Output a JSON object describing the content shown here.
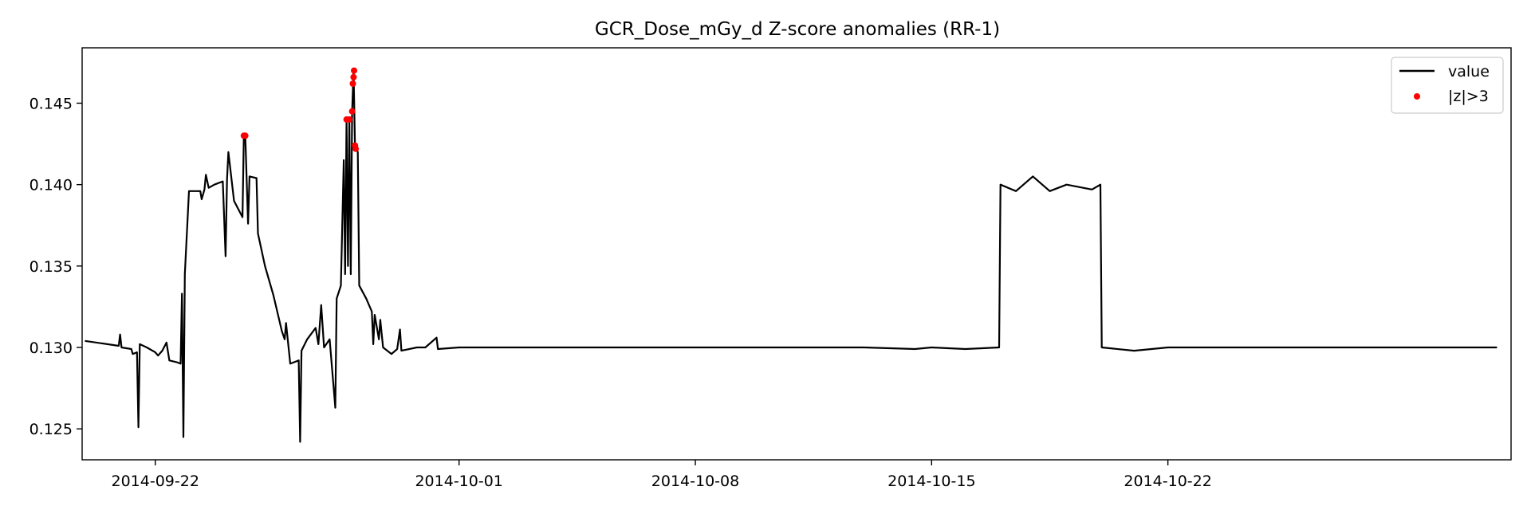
{
  "chart_data": {
    "type": "line",
    "title": "GCR_Dose_mGy_d Z-score anomalies (RR-1)",
    "xlabel": "",
    "ylabel": "",
    "x_axis": {
      "type": "date",
      "range": [
        "2014-09-19T20:00",
        "2014-11-01T04:00"
      ],
      "ticks": [
        "2014-09-22",
        "2014-10-01",
        "2014-10-08",
        "2014-10-15",
        "2014-10-22"
      ]
    },
    "y_axis": {
      "range": [
        0.1231,
        0.1484
      ],
      "ticks": [
        "0.125",
        "0.130",
        "0.135",
        "0.140",
        "0.145"
      ],
      "tick_values": [
        0.125,
        0.13,
        0.135,
        0.14,
        0.145
      ]
    },
    "grid": false,
    "legend": {
      "position": "top-right",
      "entries": [
        {
          "label": "value",
          "marker": "line",
          "color": "#000000"
        },
        {
          "label": "|z|>3",
          "marker": "dot",
          "color": "#ff0000"
        }
      ]
    },
    "series": [
      {
        "name": "value",
        "color": "#000000",
        "points": [
          [
            "2014-09-19T22:00",
            0.1304
          ],
          [
            "2014-09-20T22:00",
            0.1301
          ],
          [
            "2014-09-20T23:00",
            0.1308
          ],
          [
            "2014-09-21T00:00",
            0.13
          ],
          [
            "2014-09-21T07:00",
            0.1299
          ],
          [
            "2014-09-21T08:00",
            0.1296
          ],
          [
            "2014-09-21T11:00",
            0.1297
          ],
          [
            "2014-09-21T12:00",
            0.1251
          ],
          [
            "2014-09-21T13:00",
            0.1302
          ],
          [
            "2014-09-21T18:00",
            0.13
          ],
          [
            "2014-09-22T00:00",
            0.1297
          ],
          [
            "2014-09-22T02:00",
            0.1295
          ],
          [
            "2014-09-22T05:00",
            0.1298
          ],
          [
            "2014-09-22T08:00",
            0.1303
          ],
          [
            "2014-09-22T10:00",
            0.1292
          ],
          [
            "2014-09-22T15:00",
            0.1291
          ],
          [
            "2014-09-22T18:00",
            0.129
          ],
          [
            "2014-09-22T19:00",
            0.1333
          ],
          [
            "2014-09-22T20:00",
            0.1245
          ],
          [
            "2014-09-22T21:00",
            0.1345
          ],
          [
            "2014-09-23T00:00",
            0.1396
          ],
          [
            "2014-09-23T08:00",
            0.1396
          ],
          [
            "2014-09-23T09:00",
            0.1391
          ],
          [
            "2014-09-23T11:00",
            0.1397
          ],
          [
            "2014-09-23T12:00",
            0.1406
          ],
          [
            "2014-09-23T14:00",
            0.1398
          ],
          [
            "2014-09-23T18:00",
            0.14
          ],
          [
            "2014-09-24T00:00",
            0.1402
          ],
          [
            "2014-09-24T02:00",
            0.1356
          ],
          [
            "2014-09-24T03:00",
            0.1403
          ],
          [
            "2014-09-24T04:00",
            0.142
          ],
          [
            "2014-09-24T08:00",
            0.139
          ],
          [
            "2014-09-24T14:00",
            0.138
          ],
          [
            "2014-09-24T15:00",
            0.143
          ],
          [
            "2014-09-24T16:00",
            0.143
          ],
          [
            "2014-09-24T18:00",
            0.1376
          ],
          [
            "2014-09-24T19:00",
            0.1405
          ],
          [
            "2014-09-25T00:00",
            0.1404
          ],
          [
            "2014-09-25T01:00",
            0.137
          ],
          [
            "2014-09-25T06:00",
            0.135
          ],
          [
            "2014-09-25T12:00",
            0.1332
          ],
          [
            "2014-09-25T18:00",
            0.131
          ],
          [
            "2014-09-25T20:00",
            0.1305
          ],
          [
            "2014-09-25T21:00",
            0.1315
          ],
          [
            "2014-09-26T00:00",
            0.129
          ],
          [
            "2014-09-26T06:00",
            0.1292
          ],
          [
            "2014-09-26T07:00",
            0.1242
          ],
          [
            "2014-09-26T08:00",
            0.1298
          ],
          [
            "2014-09-26T12:00",
            0.1305
          ],
          [
            "2014-09-26T18:00",
            0.1312
          ],
          [
            "2014-09-26T20:00",
            0.1302
          ],
          [
            "2014-09-26T22:00",
            0.1326
          ],
          [
            "2014-09-27T00:00",
            0.13
          ],
          [
            "2014-09-27T04:00",
            0.1305
          ],
          [
            "2014-09-27T08:00",
            0.1263
          ],
          [
            "2014-09-27T09:00",
            0.133
          ],
          [
            "2014-09-27T12:00",
            0.1338
          ],
          [
            "2014-09-27T14:00",
            0.1415
          ],
          [
            "2014-09-27T15:00",
            0.1345
          ],
          [
            "2014-09-27T16:00",
            0.144
          ],
          [
            "2014-09-27T17:00",
            0.135
          ],
          [
            "2014-09-27T18:00",
            0.144
          ],
          [
            "2014-09-27T19:00",
            0.1345
          ],
          [
            "2014-09-27T20:00",
            0.1445
          ],
          [
            "2014-09-27T21:00",
            0.147
          ],
          [
            "2014-09-27T22:00",
            0.1423
          ],
          [
            "2014-09-28T00:00",
            0.142
          ],
          [
            "2014-09-28T01:00",
            0.1338
          ],
          [
            "2014-09-28T06:00",
            0.133
          ],
          [
            "2014-09-28T10:00",
            0.1322
          ],
          [
            "2014-09-28T11:00",
            0.1302
          ],
          [
            "2014-09-28T12:00",
            0.132
          ],
          [
            "2014-09-28T15:00",
            0.1305
          ],
          [
            "2014-09-28T16:00",
            0.1317
          ],
          [
            "2014-09-28T18:00",
            0.13
          ],
          [
            "2014-09-29T00:00",
            0.1296
          ],
          [
            "2014-09-29T04:00",
            0.1299
          ],
          [
            "2014-09-29T06:00",
            0.1311
          ],
          [
            "2014-09-29T07:00",
            0.1298
          ],
          [
            "2014-09-29T18:00",
            0.13
          ],
          [
            "2014-09-30T00:00",
            0.13
          ],
          [
            "2014-09-30T08:00",
            0.1306
          ],
          [
            "2014-09-30T09:00",
            0.1299
          ],
          [
            "2014-10-01T00:00",
            0.13
          ],
          [
            "2014-10-13T00:00",
            0.13
          ],
          [
            "2014-10-14T12:00",
            0.1299
          ],
          [
            "2014-10-15T00:00",
            0.13
          ],
          [
            "2014-10-16T00:00",
            0.1299
          ],
          [
            "2014-10-17T00:00",
            0.13
          ],
          [
            "2014-10-17T01:00",
            0.14
          ],
          [
            "2014-10-17T12:00",
            0.1396
          ],
          [
            "2014-10-18T00:00",
            0.1405
          ],
          [
            "2014-10-18T12:00",
            0.1396
          ],
          [
            "2014-10-19T00:00",
            0.14
          ],
          [
            "2014-10-19T18:00",
            0.1397
          ],
          [
            "2014-10-20T00:00",
            0.14
          ],
          [
            "2014-10-20T01:00",
            0.13
          ],
          [
            "2014-10-21T00:00",
            0.1298
          ],
          [
            "2014-10-22T00:00",
            0.13
          ],
          [
            "2014-10-31T18:00",
            0.13
          ]
        ]
      }
    ],
    "anomalies": {
      "name": "|z|>3",
      "color": "#ff0000",
      "points": [
        [
          "2014-09-24T15:00",
          0.143
        ],
        [
          "2014-09-24T16:00",
          0.143
        ],
        [
          "2014-09-27T16:00",
          0.144
        ],
        [
          "2014-09-27T18:00",
          0.144
        ],
        [
          "2014-09-27T20:00",
          0.1445
        ],
        [
          "2014-09-27T20:30",
          0.1462
        ],
        [
          "2014-09-27T21:00",
          0.1466
        ],
        [
          "2014-09-27T21:20",
          0.147
        ],
        [
          "2014-09-27T22:00",
          0.1424
        ],
        [
          "2014-09-27T22:30",
          0.1422
        ]
      ]
    }
  }
}
